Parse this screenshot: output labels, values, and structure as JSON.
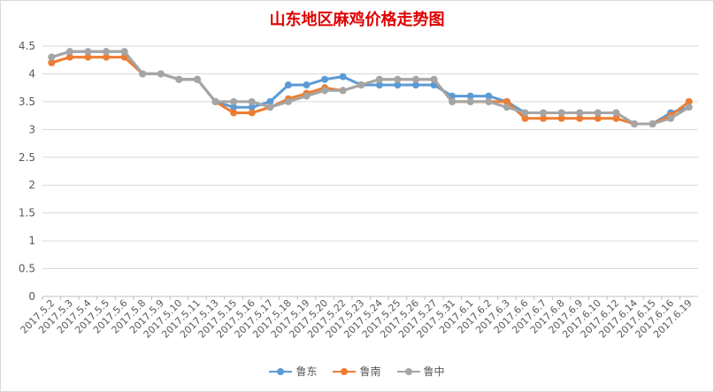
{
  "chart_data": {
    "type": "line",
    "title": "山东地区麻鸡价格走势图",
    "categories": [
      "2017.5.2",
      "2017.5.3",
      "2017.5.4",
      "2017.5.5",
      "2017.5.6",
      "2017.5.8",
      "2017.5.9",
      "2017.5.10",
      "2017.5.11",
      "2017.5.13",
      "2017.5.15",
      "2017.5.16",
      "2017.5.17",
      "2017.5.18",
      "2017.5.19",
      "2017.5.20",
      "2017.5.22",
      "2017.5.23",
      "2017.5.24",
      "2017.5.25",
      "2017.5.26",
      "2017.5.27",
      "2017.5.31",
      "2017.6.1",
      "2017.6.2",
      "2017.6.3",
      "2017.6.6",
      "2017.6.7",
      "2017.6.8",
      "2017.6.9",
      "2017.6.10",
      "2017.6.12",
      "2017.6.14",
      "2017.6.15",
      "2017.6.16",
      "2017.6.19"
    ],
    "series": [
      {
        "name": "鲁东",
        "color": "#5b9bd5",
        "values": [
          4.3,
          4.4,
          4.4,
          4.4,
          4.4,
          4.0,
          4.0,
          3.9,
          3.9,
          3.5,
          3.4,
          3.4,
          3.5,
          3.8,
          3.8,
          3.9,
          3.95,
          3.8,
          3.8,
          3.8,
          3.8,
          3.8,
          3.6,
          3.6,
          3.6,
          3.5,
          3.3,
          3.3,
          3.3,
          3.3,
          3.3,
          3.3,
          3.1,
          3.1,
          3.3,
          3.4
        ]
      },
      {
        "name": "鲁南",
        "color": "#ed7d31",
        "values": [
          4.2,
          4.3,
          4.3,
          4.3,
          4.3,
          4.0,
          4.0,
          3.9,
          3.9,
          3.5,
          3.3,
          3.3,
          3.4,
          3.55,
          3.65,
          3.75,
          3.7,
          3.8,
          3.9,
          3.9,
          3.9,
          3.9,
          3.5,
          3.5,
          3.5,
          3.5,
          3.2,
          3.2,
          3.2,
          3.2,
          3.2,
          3.2,
          3.1,
          3.1,
          3.25,
          3.5
        ]
      },
      {
        "name": "鲁中",
        "color": "#a5a5a5",
        "values": [
          4.3,
          4.4,
          4.4,
          4.4,
          4.4,
          4.0,
          4.0,
          3.9,
          3.9,
          3.5,
          3.5,
          3.5,
          3.4,
          3.5,
          3.6,
          3.7,
          3.7,
          3.8,
          3.9,
          3.9,
          3.9,
          3.9,
          3.5,
          3.5,
          3.5,
          3.4,
          3.3,
          3.3,
          3.3,
          3.3,
          3.3,
          3.3,
          3.1,
          3.1,
          3.2,
          3.4
        ]
      }
    ],
    "y_ticks": [
      "0",
      "0.5",
      "1",
      "1.5",
      "2",
      "2.5",
      "3",
      "3.5",
      "4",
      "4.5"
    ],
    "ylim": [
      0,
      4.5
    ],
    "grid": true,
    "legend_position": "bottom"
  }
}
